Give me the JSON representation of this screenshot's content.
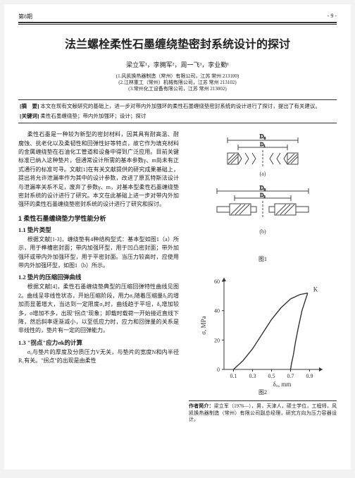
{
  "header": {
    "issue": "第8期",
    "page_number": "- 9 -"
  },
  "title": "法兰螺栓柔性石墨缠绕垫密封系统设计的探讨",
  "authors": "梁立军¹，李拥军²，周一飞³，李业勤¹",
  "affiliations": [
    "(1.风凯换热器制造（常州）有限公司，江苏 常州 213100)",
    "(2.江林重工（常州）机械有限公司，江苏 常州 213102)",
    "(3.常州化工设备有限公司，江苏 常州 213002)"
  ],
  "abstract_label": "[摘　要]",
  "abstract": "本文在现有文献研究的基础上，进一步对带内外加强环的柔性石墨缠绕垫密封系统的设计进行了探讨，提出了有关建议。",
  "keywords_label": "[关键词]",
  "keywords": "柔性石墨缠绕垫；带内外加强环；设计；探讨",
  "intro": "柔性石墨是一种较为新型的密封材料，因其具有耐高温、耐腐蚀、抗老化以及柔韧性和回弹性好等特点，故它作为填充材料的金属缠绕垫在石油化工管道和设备中得到广泛应用。目前关键标准已纳入这种垫片，但通常设计所需的基本参数γ、m尚未有正式通行的标准可寻。文献[1]在有关文献提供的研究成果基础上，提出将允许泄漏率作为其中的设计参数，改进了原瓦特斯法设计与泄漏率关系不足，废弃了参数γ、m，对基本型柔性石墨缠绕垫密封系统的设计进行了研究。本文在此基础上进一步对带内外加强环的柔性石墨缠绕垫密封系统的设计进行了研究和探讨。",
  "sec1": "1 柔性石墨缠绕垫力学性能分析",
  "sub11": "1.1 垫片类型",
  "p11": "根据文献[1-3]，缠绕垫有4种结构型式：基本型如图1（a）所示，用于榫槽密封面；带内加强环型，用于凹凸密封面；带外加强环或带内外加强环型，用于平密封面。当压力较高时，应使用带内外加强环型，如图1（b）所示。",
  "sub12": "1.2 垫片的压缩回弹曲线",
  "p12": "根据文献[4]，柔性石墨缠绕垫典型的压缩回弹特性曲线见图2。曲线呈非线性状态，开始压缩阶段，用力σ₀随着压缩量δ₀的增加而显著增大，当达到一定限度σ₀时，曲线趋于平坦，δ₀增加较多，σ增加不多，出现\"拐点\"现象；卸载时载荷一开始接近直线下降，然后斜率逐渐减小，以至低应力时，应力和回弹量的关系是非线性的，垫片有一定的回弹能力。",
  "sub13": "1.3 \"拐点\"应力σk的计算",
  "p13": "σ₀与垫片的厚度及分质压力V无关，与垫片的宽度N和内半径R₁有关。\"拐点\"的出现是由柔性",
  "fig1_caption": "图1",
  "fig2_caption": "图2",
  "author_bio_label": "作者简介：",
  "author_bio": "梁立军（1976—），男，天津人，硕士学位，工程师，风凯换热器制造（常州）有限公司副总经理，研究方向为压力容器设计。",
  "fig1": {
    "D0_label": "D₀",
    "D1_label": "D₁",
    "D2_label": "D₂",
    "a_label": "(a)",
    "b_label": "(b)",
    "outline": "#444444",
    "hatch": "#555555"
  },
  "fig2": {
    "type": "curve",
    "xlabel": "δ₀, mm",
    "ylabel": "σ, MPa",
    "xlim": [
      0,
      1.0
    ],
    "ylim": [
      0,
      60
    ],
    "xticks": [
      0.1,
      0.3,
      0.5,
      0.7,
      0.9
    ],
    "yticks": [
      0,
      20,
      40,
      60
    ],
    "k_label": "K",
    "axis_color": "#333333",
    "curve_color": "#333333",
    "load_curve": [
      [
        0.1,
        0
      ],
      [
        0.2,
        6
      ],
      [
        0.3,
        14
      ],
      [
        0.4,
        24
      ],
      [
        0.5,
        34
      ],
      [
        0.6,
        42
      ],
      [
        0.7,
        48
      ],
      [
        0.8,
        51
      ],
      [
        0.88,
        52
      ]
    ],
    "unload_curve": [
      [
        0.88,
        52
      ],
      [
        0.82,
        40
      ],
      [
        0.78,
        28
      ],
      [
        0.75,
        18
      ],
      [
        0.73,
        10
      ],
      [
        0.71,
        4
      ],
      [
        0.7,
        0
      ]
    ]
  }
}
